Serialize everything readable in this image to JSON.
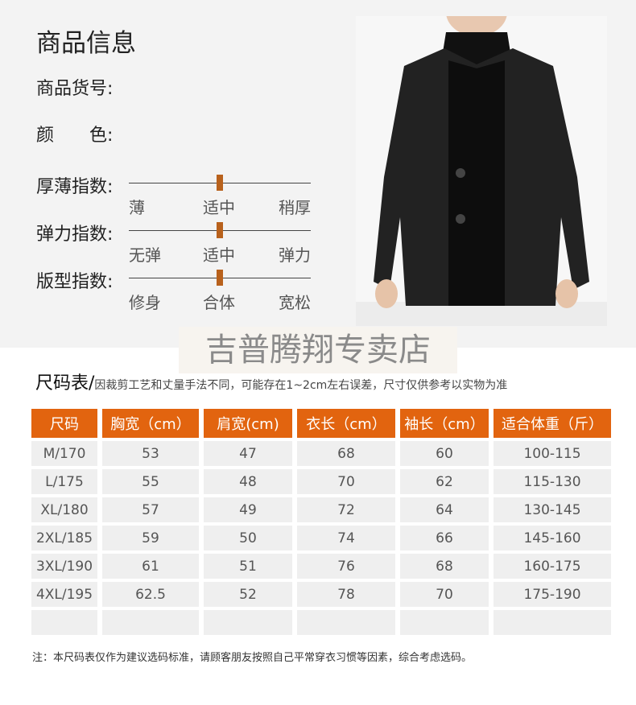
{
  "info": {
    "title": "商品信息",
    "sku_label": "商品货号:",
    "color_label": "颜　　色:"
  },
  "indices": [
    {
      "label": "厚薄指数:",
      "ticks": [
        "薄",
        "适中",
        "稍厚"
      ],
      "level": 0.5
    },
    {
      "label": "弹力指数:",
      "ticks": [
        "无弹",
        "适中",
        "弹力"
      ],
      "level": 0.5
    },
    {
      "label": "版型指数:",
      "ticks": [
        "修身",
        "合体",
        "宽松"
      ],
      "level": 0.5
    }
  ],
  "store_watermark": "吉普腾翔专卖店",
  "size_table": {
    "title": "尺码表/",
    "subtitle": "因裁剪工艺和丈量手法不同，可能存在1~2cm左右误差，尺寸仅供参考以实物为准",
    "headers": [
      "尺码",
      "胸宽（cm）",
      "肩宽(cm)",
      "衣长（cm）",
      "袖长（cm）",
      "适合体重（斤）"
    ],
    "rows": [
      [
        "M/170",
        "53",
        "47",
        "68",
        "60",
        "100-115"
      ],
      [
        "L/175",
        "55",
        "48",
        "70",
        "62",
        "115-130"
      ],
      [
        "XL/180",
        "57",
        "49",
        "72",
        "64",
        "130-145"
      ],
      [
        "2XL/185",
        "59",
        "50",
        "74",
        "66",
        "145-160"
      ],
      [
        "3XL/190",
        "61",
        "51",
        "76",
        "68",
        "160-175"
      ],
      [
        "4XL/195",
        "62.5",
        "52",
        "78",
        "70",
        "175-190"
      ],
      [
        "",
        "",
        "",
        "",
        "",
        ""
      ]
    ],
    "header_color": "#e2640f"
  },
  "footnote": "注：本尺码表仅作为建议选码标准，请顾客朋友按照自己平常穿衣习惯等因素，综合考虑选码。"
}
